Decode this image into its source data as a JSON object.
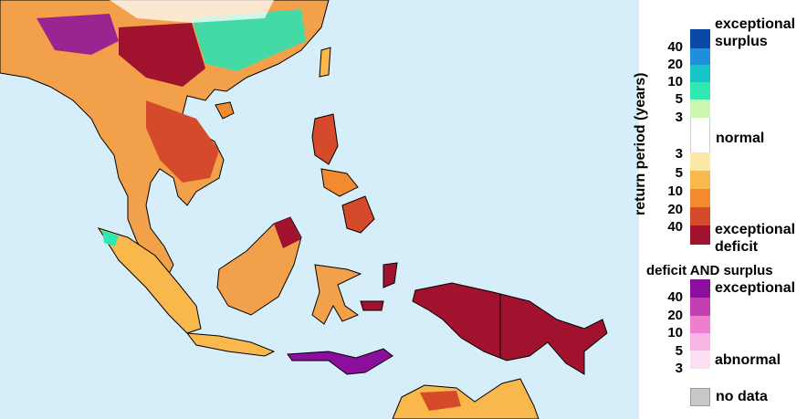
{
  "legend": {
    "axis_title": "return period (years)",
    "main_scale": [
      {
        "label": "40",
        "color": "#0a4aa6"
      },
      {
        "label": "20",
        "color": "#1e90d8"
      },
      {
        "label": "10",
        "color": "#15c5c5"
      },
      {
        "label": "5",
        "color": "#30e8b0"
      },
      {
        "label": "3",
        "color": "#cdf7b0"
      },
      {
        "label": "3",
        "color": "#ffffff"
      },
      {
        "label": "5",
        "color": "#fde9a6"
      },
      {
        "label": "10",
        "color": "#f9b84b"
      },
      {
        "label": "20",
        "color": "#f38a2f"
      },
      {
        "label": "40",
        "color": "#d44a2a"
      },
      {
        "label": "",
        "color": "#a1122f"
      }
    ],
    "surplus_label_1": "exceptional",
    "surplus_label_2": "surplus",
    "normal_label": "normal",
    "deficit_label_1": "exceptional",
    "deficit_label_2": "deficit",
    "combo_title": "deficit AND surplus",
    "combo_scale": [
      {
        "label": "40",
        "color": "#8b0e9c"
      },
      {
        "label": "20",
        "color": "#c43eb4"
      },
      {
        "label": "10",
        "color": "#ee7fcf"
      },
      {
        "label": "5",
        "color": "#f9b5e3"
      },
      {
        "label": "3",
        "color": "#fde0f3"
      }
    ],
    "combo_high": "exceptional",
    "combo_low": "abnormal",
    "nodata_label": "no data",
    "nodata_color": "#c8c8c8"
  },
  "map": {
    "ocean_color": "#d6eefa"
  }
}
